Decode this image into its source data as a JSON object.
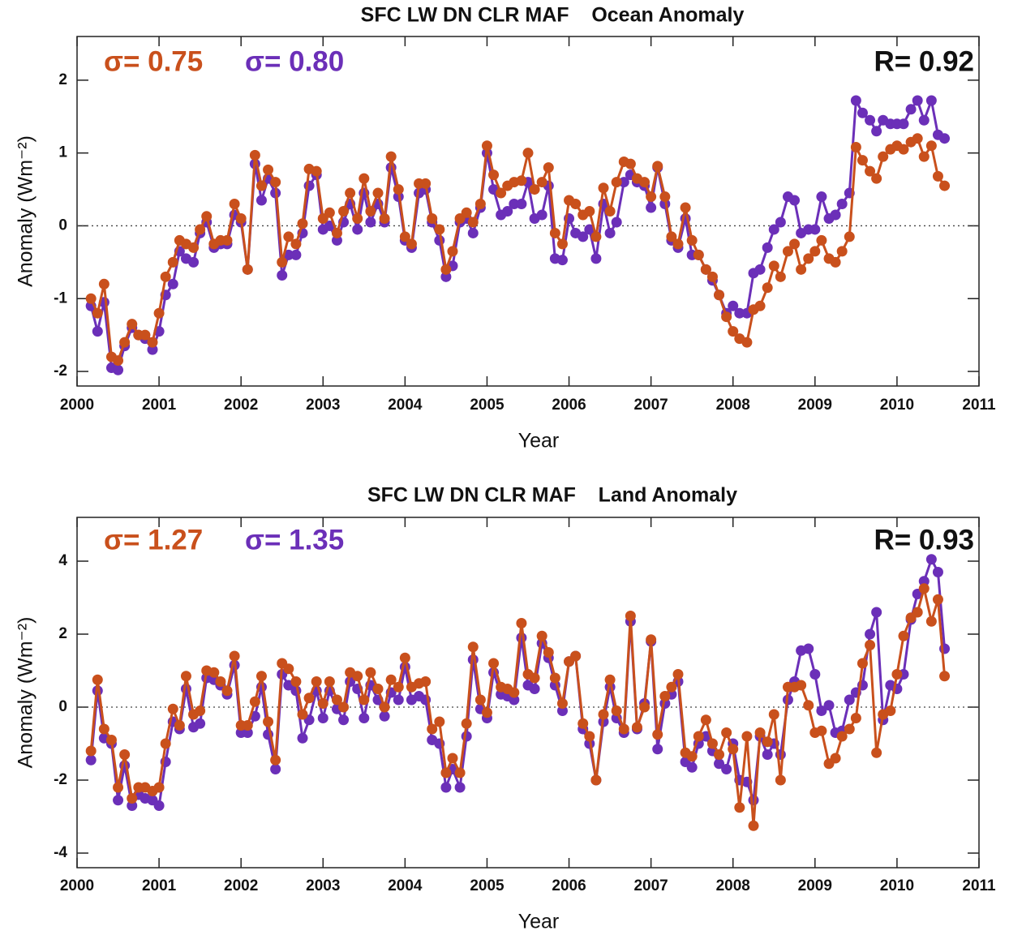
{
  "chart_data": [
    {
      "type": "line",
      "title": "SFC LW DN CLR MAF    Ocean Anomaly",
      "x_label": "Year",
      "y_label": "Anomaly (Wm⁻²)",
      "annotation": "R= 0.92",
      "xlim": [
        2000,
        2011
      ],
      "xticks": [
        2000,
        2001,
        2002,
        2003,
        2004,
        2005,
        2006,
        2007,
        2008,
        2009,
        2010,
        2011
      ],
      "ylim": [
        -2.2,
        2.6
      ],
      "yticks": [
        -2,
        -1,
        0,
        1,
        2
      ],
      "zero_line": true,
      "x": [
        2000.17,
        2000.25,
        2000.33,
        2000.42,
        2000.5,
        2000.58,
        2000.67,
        2000.75,
        2000.83,
        2000.92,
        2001,
        2001.08,
        2001.17,
        2001.25,
        2001.33,
        2001.42,
        2001.5,
        2001.58,
        2001.67,
        2001.75,
        2001.83,
        2001.92,
        2002,
        2002.08,
        2002.17,
        2002.25,
        2002.33,
        2002.42,
        2002.5,
        2002.58,
        2002.67,
        2002.75,
        2002.83,
        2002.92,
        2003,
        2003.08,
        2003.17,
        2003.25,
        2003.33,
        2003.42,
        2003.5,
        2003.58,
        2003.67,
        2003.75,
        2003.83,
        2003.92,
        2004,
        2004.08,
        2004.17,
        2004.25,
        2004.33,
        2004.42,
        2004.5,
        2004.58,
        2004.67,
        2004.75,
        2004.83,
        2004.92,
        2005,
        2005.08,
        2005.17,
        2005.25,
        2005.33,
        2005.42,
        2005.5,
        2005.58,
        2005.67,
        2005.75,
        2005.83,
        2005.92,
        2006,
        2006.08,
        2006.17,
        2006.25,
        2006.33,
        2006.42,
        2006.5,
        2006.58,
        2006.67,
        2006.75,
        2006.83,
        2006.92,
        2007,
        2007.08,
        2007.17,
        2007.25,
        2007.33,
        2007.42,
        2007.5,
        2007.58,
        2007.67,
        2007.75,
        2007.83,
        2007.92,
        2008,
        2008.08,
        2008.17,
        2008.25,
        2008.33,
        2008.42,
        2008.5,
        2008.58,
        2008.67,
        2008.75,
        2008.83,
        2008.92,
        2009,
        2009.08,
        2009.17,
        2009.25,
        2009.33,
        2009.42,
        2009.5,
        2009.58,
        2009.67,
        2009.75,
        2009.83,
        2009.92,
        2010,
        2010.08,
        2010.17,
        2010.25,
        2010.33,
        2010.42,
        2010.5,
        2010.58
      ],
      "series": [
        {
          "name": "σ= 0.75",
          "color": "#c9501c",
          "values": [
            -1.0,
            -1.2,
            -0.8,
            -1.8,
            -1.85,
            -1.6,
            -1.35,
            -1.5,
            -1.5,
            -1.6,
            -1.2,
            -0.7,
            -0.5,
            -0.2,
            -0.25,
            -0.3,
            -0.05,
            0.13,
            -0.25,
            -0.2,
            -0.2,
            0.3,
            0.1,
            -0.6,
            0.97,
            0.55,
            0.77,
            0.6,
            -0.5,
            -0.15,
            -0.25,
            0.03,
            0.78,
            0.75,
            0.1,
            0.18,
            -0.1,
            0.2,
            0.45,
            0.1,
            0.65,
            0.2,
            0.45,
            0.1,
            0.95,
            0.5,
            -0.15,
            -0.25,
            0.58,
            0.58,
            0.1,
            -0.05,
            -0.6,
            -0.35,
            0.1,
            0.18,
            0.05,
            0.3,
            1.1,
            0.7,
            0.45,
            0.55,
            0.6,
            0.62,
            1.0,
            0.5,
            0.6,
            0.8,
            -0.1,
            -0.25,
            0.35,
            0.3,
            0.15,
            0.2,
            -0.15,
            0.52,
            0.2,
            0.6,
            0.88,
            0.85,
            0.65,
            0.6,
            0.4,
            0.82,
            0.4,
            -0.15,
            -0.25,
            0.25,
            -0.2,
            -0.4,
            -0.6,
            -0.7,
            -0.95,
            -1.25,
            -1.45,
            -1.55,
            -1.6,
            -1.15,
            -1.1,
            -0.85,
            -0.55,
            -0.7,
            -0.35,
            -0.25,
            -0.6,
            -0.45,
            -0.35,
            -0.2,
            -0.45,
            -0.5,
            -0.35,
            -0.15,
            1.08,
            0.9,
            0.75,
            0.65,
            0.95,
            1.05,
            1.1,
            1.05,
            1.15,
            1.2,
            0.95,
            1.1,
            0.68,
            0.55
          ]
        },
        {
          "name": "σ= 0.80",
          "color": "#6b2fb8",
          "values": [
            -1.1,
            -1.45,
            -1.05,
            -1.95,
            -1.98,
            -1.65,
            -1.4,
            -1.5,
            -1.55,
            -1.7,
            -1.45,
            -0.95,
            -0.8,
            -0.35,
            -0.45,
            -0.5,
            -0.1,
            0.05,
            -0.3,
            -0.25,
            -0.25,
            0.15,
            0.05,
            -0.6,
            0.85,
            0.35,
            0.65,
            0.45,
            -0.68,
            -0.4,
            -0.4,
            -0.1,
            0.55,
            0.7,
            -0.05,
            0.0,
            -0.2,
            0.05,
            0.3,
            -0.05,
            0.45,
            0.05,
            0.3,
            0.05,
            0.8,
            0.4,
            -0.2,
            -0.3,
            0.45,
            0.5,
            0.05,
            -0.2,
            -0.7,
            -0.55,
            0.05,
            0.1,
            -0.1,
            0.25,
            1.0,
            0.5,
            0.15,
            0.2,
            0.3,
            0.3,
            0.6,
            0.1,
            0.15,
            0.55,
            -0.45,
            -0.47,
            0.1,
            -0.1,
            -0.15,
            -0.05,
            -0.45,
            0.3,
            -0.1,
            0.05,
            0.6,
            0.7,
            0.6,
            0.55,
            0.25,
            0.8,
            0.3,
            -0.2,
            -0.3,
            0.1,
            -0.4,
            -0.4,
            -0.6,
            -0.75,
            -0.95,
            -1.2,
            -1.1,
            -1.2,
            -1.2,
            -0.65,
            -0.6,
            -0.3,
            -0.05,
            0.05,
            0.4,
            0.35,
            -0.1,
            -0.05,
            -0.05,
            0.4,
            0.1,
            0.15,
            0.3,
            0.45,
            1.72,
            1.55,
            1.45,
            1.3,
            1.45,
            1.4,
            1.4,
            1.4,
            1.6,
            1.72,
            1.45,
            1.72,
            1.25,
            1.2
          ]
        }
      ]
    },
    {
      "type": "line",
      "title": "SFC LW DN CLR MAF    Land Anomaly",
      "x_label": "Year",
      "y_label": "Anomaly (Wm⁻²)",
      "annotation": "R= 0.93",
      "xlim": [
        2000,
        2011
      ],
      "xticks": [
        2000,
        2001,
        2002,
        2003,
        2004,
        2005,
        2006,
        2007,
        2008,
        2009,
        2010,
        2011
      ],
      "ylim": [
        -4.4,
        5.2
      ],
      "yticks": [
        -4,
        -2,
        0,
        2,
        4
      ],
      "zero_line": true,
      "x": [
        2000.17,
        2000.25,
        2000.33,
        2000.42,
        2000.5,
        2000.58,
        2000.67,
        2000.75,
        2000.83,
        2000.92,
        2001,
        2001.08,
        2001.17,
        2001.25,
        2001.33,
        2001.42,
        2001.5,
        2001.58,
        2001.67,
        2001.75,
        2001.83,
        2001.92,
        2002,
        2002.08,
        2002.17,
        2002.25,
        2002.33,
        2002.42,
        2002.5,
        2002.58,
        2002.67,
        2002.75,
        2002.83,
        2002.92,
        2003,
        2003.08,
        2003.17,
        2003.25,
        2003.33,
        2003.42,
        2003.5,
        2003.58,
        2003.67,
        2003.75,
        2003.83,
        2003.92,
        2004,
        2004.08,
        2004.17,
        2004.25,
        2004.33,
        2004.42,
        2004.5,
        2004.58,
        2004.67,
        2004.75,
        2004.83,
        2004.92,
        2005,
        2005.08,
        2005.17,
        2005.25,
        2005.33,
        2005.42,
        2005.5,
        2005.58,
        2005.67,
        2005.75,
        2005.83,
        2005.92,
        2006,
        2006.08,
        2006.17,
        2006.25,
        2006.33,
        2006.42,
        2006.5,
        2006.58,
        2006.67,
        2006.75,
        2006.83,
        2006.92,
        2007,
        2007.08,
        2007.17,
        2007.25,
        2007.33,
        2007.42,
        2007.5,
        2007.58,
        2007.67,
        2007.75,
        2007.83,
        2007.92,
        2008,
        2008.08,
        2008.17,
        2008.25,
        2008.33,
        2008.42,
        2008.5,
        2008.58,
        2008.67,
        2008.75,
        2008.83,
        2008.92,
        2009,
        2009.08,
        2009.17,
        2009.25,
        2009.33,
        2009.42,
        2009.5,
        2009.58,
        2009.67,
        2009.75,
        2009.83,
        2009.92,
        2010,
        2010.08,
        2010.17,
        2010.25,
        2010.33,
        2010.42,
        2010.5,
        2010.58
      ],
      "series": [
        {
          "name": "σ= 1.27",
          "color": "#c9501c",
          "values": [
            -1.2,
            0.75,
            -0.6,
            -0.9,
            -2.2,
            -1.3,
            -2.5,
            -2.2,
            -2.2,
            -2.3,
            -2.2,
            -1.0,
            -0.05,
            -0.5,
            0.85,
            -0.2,
            -0.1,
            1.0,
            0.95,
            0.7,
            0.45,
            1.4,
            -0.5,
            -0.5,
            0.15,
            0.85,
            -0.4,
            -1.45,
            1.2,
            1.05,
            0.7,
            -0.2,
            0.25,
            0.7,
            0.1,
            0.7,
            0.2,
            0.0,
            0.95,
            0.85,
            0.2,
            0.95,
            0.5,
            0.0,
            0.75,
            0.55,
            1.35,
            0.55,
            0.65,
            0.7,
            -0.6,
            -0.4,
            -1.8,
            -1.4,
            -1.8,
            -0.45,
            1.65,
            0.2,
            -0.15,
            1.2,
            0.55,
            0.5,
            0.4,
            2.3,
            0.9,
            0.8,
            1.95,
            1.5,
            0.8,
            0.1,
            1.25,
            1.4,
            -0.45,
            -0.8,
            -2.0,
            -0.2,
            0.75,
            -0.1,
            -0.6,
            2.5,
            -0.55,
            0.0,
            1.85,
            -0.75,
            0.3,
            0.55,
            0.9,
            -1.25,
            -1.35,
            -0.8,
            -0.35,
            -1.0,
            -1.3,
            -0.7,
            -1.15,
            -2.75,
            -0.8,
            -3.25,
            -0.7,
            -0.95,
            -0.2,
            -2.0,
            0.55,
            0.55,
            0.6,
            0.05,
            -0.7,
            -0.65,
            -1.55,
            -1.4,
            -0.8,
            -0.6,
            -0.3,
            1.2,
            1.7,
            -1.25,
            -0.2,
            -0.1,
            0.9,
            1.95,
            2.45,
            2.6,
            3.25,
            2.35,
            2.95,
            0.85
          ]
        },
        {
          "name": "σ= 1.35",
          "color": "#6b2fb8",
          "values": [
            -1.45,
            0.45,
            -0.85,
            -1.0,
            -2.55,
            -1.6,
            -2.7,
            -2.4,
            -2.5,
            -2.55,
            -2.7,
            -1.5,
            -0.4,
            -0.6,
            0.5,
            -0.55,
            -0.45,
            0.8,
            0.75,
            0.6,
            0.35,
            1.15,
            -0.7,
            -0.7,
            -0.25,
            0.55,
            -0.75,
            -1.7,
            0.9,
            0.6,
            0.45,
            -0.85,
            -0.35,
            0.45,
            -0.3,
            0.45,
            -0.05,
            -0.35,
            0.7,
            0.5,
            -0.3,
            0.6,
            0.2,
            -0.25,
            0.4,
            0.2,
            1.1,
            0.2,
            0.3,
            0.2,
            -0.9,
            -1.0,
            -2.2,
            -1.7,
            -2.2,
            -0.8,
            1.3,
            -0.05,
            -0.3,
            0.95,
            0.35,
            0.3,
            0.2,
            1.9,
            0.6,
            0.5,
            1.75,
            1.35,
            0.6,
            -0.1,
            1.25,
            1.4,
            -0.6,
            -1.0,
            -2.0,
            -0.4,
            0.55,
            -0.3,
            -0.7,
            2.35,
            -0.6,
            0.1,
            1.8,
            -1.15,
            0.1,
            0.35,
            0.7,
            -1.5,
            -1.65,
            -1.0,
            -0.8,
            -1.2,
            -1.55,
            -1.7,
            -1.0,
            -2.0,
            -2.05,
            -2.55,
            -0.8,
            -1.3,
            -1.0,
            -1.3,
            0.2,
            0.7,
            1.55,
            1.6,
            0.9,
            -0.1,
            0.05,
            -0.7,
            -0.65,
            0.2,
            0.4,
            0.6,
            2.0,
            2.6,
            -0.35,
            0.6,
            0.5,
            0.9,
            2.4,
            3.1,
            3.45,
            4.05,
            3.7,
            1.6
          ]
        }
      ]
    }
  ]
}
